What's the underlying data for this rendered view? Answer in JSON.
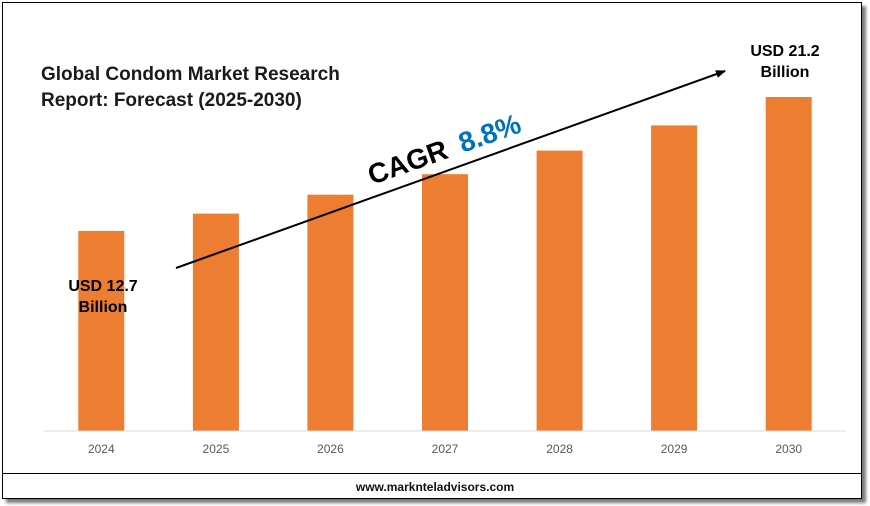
{
  "title": "Global Condom Market Research Report: Forecast (2025-2030)",
  "footer": "www.marknteladvisors.com",
  "cagr": {
    "label": "CAGR",
    "value": "8.8%"
  },
  "start_value": {
    "line1": "USD 12.7",
    "line2": "Billion"
  },
  "end_value": {
    "line1": "USD 21.2",
    "line2": "Billion"
  },
  "colors": {
    "bar": "#ED7D31",
    "cagr_value": "#0070C0",
    "axis": "#d9d9d9"
  },
  "chart_data": {
    "type": "bar",
    "title": "Global Condom Market Research Report: Forecast (2025-2030)",
    "categories": [
      "2024",
      "2025",
      "2026",
      "2027",
      "2028",
      "2029",
      "2030"
    ],
    "values": [
      12.7,
      13.8,
      15.0,
      16.3,
      17.8,
      19.4,
      21.2
    ],
    "ylim": [
      0,
      21.2
    ],
    "grid": false,
    "legend": "none"
  }
}
